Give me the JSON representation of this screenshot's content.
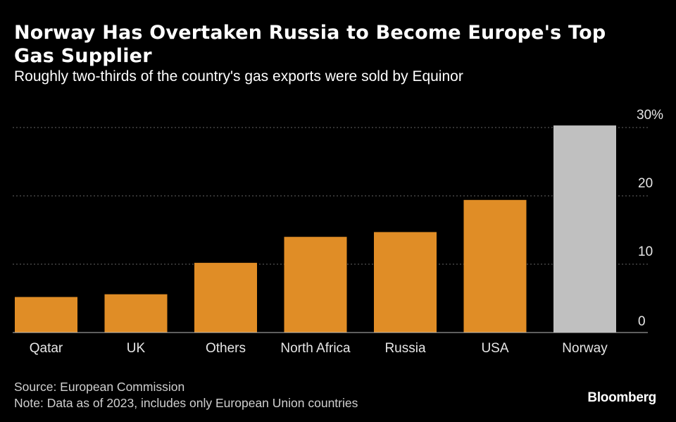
{
  "title": "Norway Has Overtaken Russia to Become Europe's Top Gas Supplier",
  "subtitle": "Roughly two-thirds of the country's gas exports were sold by Equinor",
  "source": "Source: European Commission",
  "note": "Note: Data as of 2023, includes only European Union countries",
  "brand": "Bloomberg",
  "colors": {
    "background": "#000000",
    "bar": "#e08d26",
    "highlight": "#c0c0c0",
    "grid": "#666666",
    "text": "#ffffff"
  },
  "chart_data": {
    "type": "bar",
    "title": "Norway Has Overtaken Russia to Become Europe's Top Gas Supplier",
    "subtitle": "Roughly two-thirds of the country's gas exports were sold by Equinor",
    "categories": [
      "Qatar",
      "UK",
      "Others",
      "North Africa",
      "Russia",
      "USA",
      "Norway"
    ],
    "values": [
      5.2,
      5.6,
      10.2,
      14.0,
      14.7,
      19.4,
      30.3
    ],
    "highlight": "Norway",
    "yticks": [
      0,
      10,
      20,
      30
    ],
    "ytick_labels": [
      "0",
      "10",
      "20",
      "30%"
    ],
    "ylim": [
      0,
      30
    ],
    "y_axis_position": "right",
    "grid": true,
    "xlabel": "",
    "ylabel": ""
  }
}
